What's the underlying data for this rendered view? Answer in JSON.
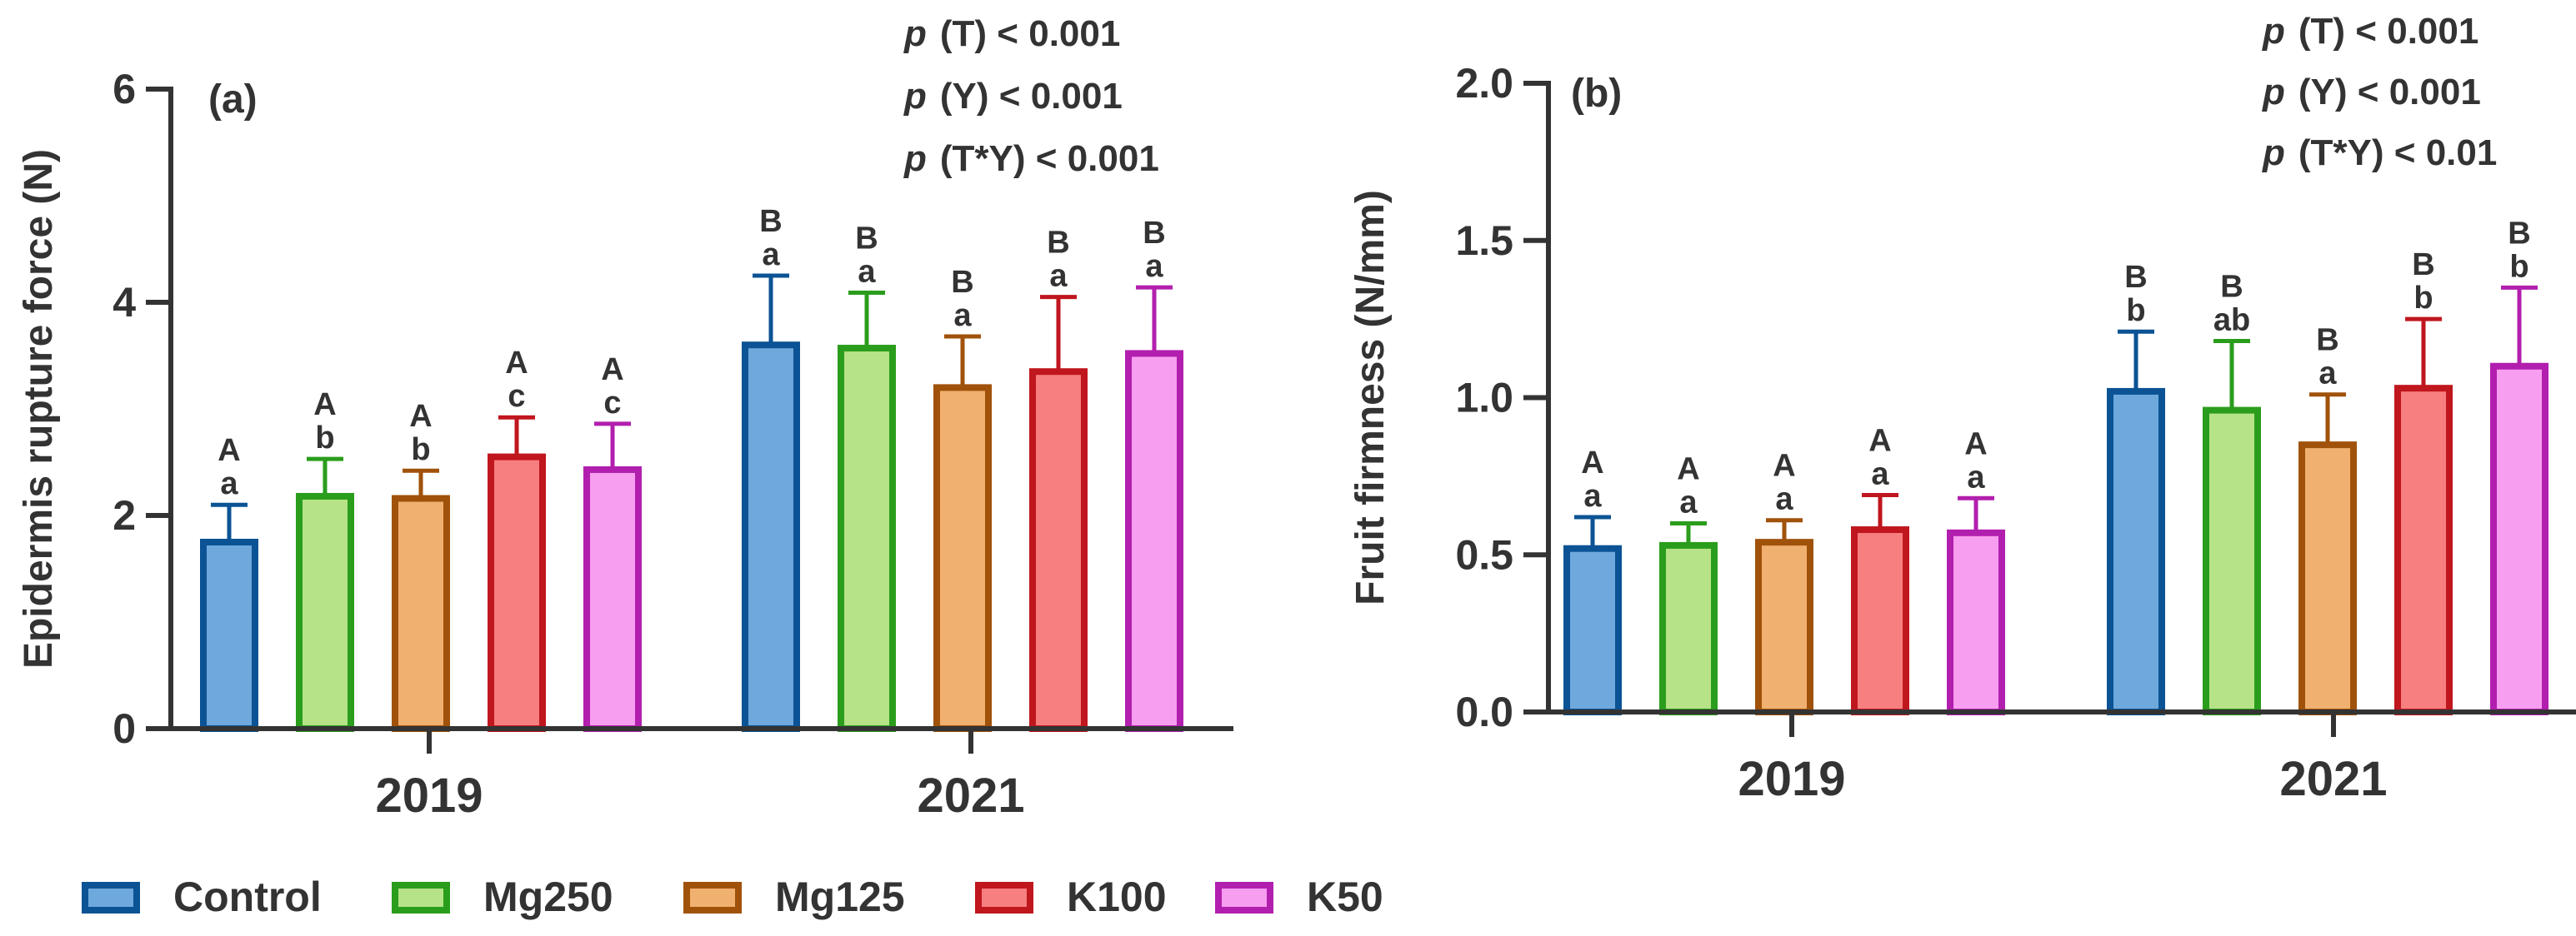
{
  "legend": [
    {
      "name": "Control",
      "fill": "#6fa8dc",
      "edge": "#0b5394"
    },
    {
      "name": "Mg250",
      "fill": "#b6e388",
      "edge": "#2a9d1c"
    },
    {
      "name": "Mg125",
      "fill": "#f0b070",
      "edge": "#a0520a"
    },
    {
      "name": "K100",
      "fill": "#f77f7f",
      "edge": "#c0161e"
    },
    {
      "name": "K50",
      "fill": "#f79ef0",
      "edge": "#b21fae"
    }
  ],
  "chart_data": [
    {
      "type": "bar",
      "panel_label": "(a)",
      "ylabel": "Epidermis rupture force (N)",
      "categories": [
        "2019",
        "2021"
      ],
      "ylim": [
        0,
        6
      ],
      "yticks": [
        "0",
        "2",
        "4",
        "6"
      ],
      "stats": [
        "(T) < 0.001",
        "(Y) < 0.001",
        "(T*Y) < 0.001"
      ],
      "stats_prefix": "p",
      "series": [
        {
          "name": "Control",
          "values": [
            1.75,
            3.6
          ],
          "errors": [
            0.35,
            0.65
          ],
          "upper_letters": [
            "A",
            "B"
          ],
          "lower_letters": [
            "a",
            "a"
          ]
        },
        {
          "name": "Mg250",
          "values": [
            2.18,
            3.57
          ],
          "errors": [
            0.35,
            0.52
          ],
          "upper_letters": [
            "A",
            "B"
          ],
          "lower_letters": [
            "b",
            "a"
          ]
        },
        {
          "name": "Mg125",
          "values": [
            2.16,
            3.2
          ],
          "errors": [
            0.26,
            0.48
          ],
          "upper_letters": [
            "A",
            "B"
          ],
          "lower_letters": [
            "b",
            "a"
          ]
        },
        {
          "name": "K100",
          "values": [
            2.55,
            3.35
          ],
          "errors": [
            0.37,
            0.7
          ],
          "upper_letters": [
            "A",
            "B"
          ],
          "lower_letters": [
            "c",
            "a"
          ]
        },
        {
          "name": "K50",
          "values": [
            2.43,
            3.52
          ],
          "errors": [
            0.43,
            0.62
          ],
          "upper_letters": [
            "A",
            "B"
          ],
          "lower_letters": [
            "c",
            "a"
          ]
        }
      ]
    },
    {
      "type": "bar",
      "panel_label": "(b)",
      "ylabel": "Fruit firmness (N/mm)",
      "categories": [
        "2019",
        "2021"
      ],
      "ylim": [
        0,
        2
      ],
      "yticks": [
        "0.0",
        "0.5",
        "1.0",
        "1.5",
        "2.0"
      ],
      "stats": [
        "(T) < 0.001",
        "(Y) < 0.001",
        "(T*Y) < 0.01"
      ],
      "stats_prefix": "p",
      "series": [
        {
          "name": "Control",
          "values": [
            0.52,
            1.02
          ],
          "errors": [
            0.1,
            0.19
          ],
          "upper_letters": [
            "A",
            "B"
          ],
          "lower_letters": [
            "a",
            "b"
          ]
        },
        {
          "name": "Mg250",
          "values": [
            0.53,
            0.96
          ],
          "errors": [
            0.07,
            0.22
          ],
          "upper_letters": [
            "A",
            "B"
          ],
          "lower_letters": [
            "a",
            "ab"
          ]
        },
        {
          "name": "Mg125",
          "values": [
            0.54,
            0.85
          ],
          "errors": [
            0.07,
            0.16
          ],
          "upper_letters": [
            "A",
            "B"
          ],
          "lower_letters": [
            "a",
            "a"
          ]
        },
        {
          "name": "K100",
          "values": [
            0.58,
            1.03
          ],
          "errors": [
            0.11,
            0.22
          ],
          "upper_letters": [
            "A",
            "B"
          ],
          "lower_letters": [
            "a",
            "b"
          ]
        },
        {
          "name": "K50",
          "values": [
            0.57,
            1.1
          ],
          "errors": [
            0.11,
            0.25
          ],
          "upper_letters": [
            "A",
            "B"
          ],
          "lower_letters": [
            "a",
            "b"
          ]
        }
      ]
    }
  ]
}
